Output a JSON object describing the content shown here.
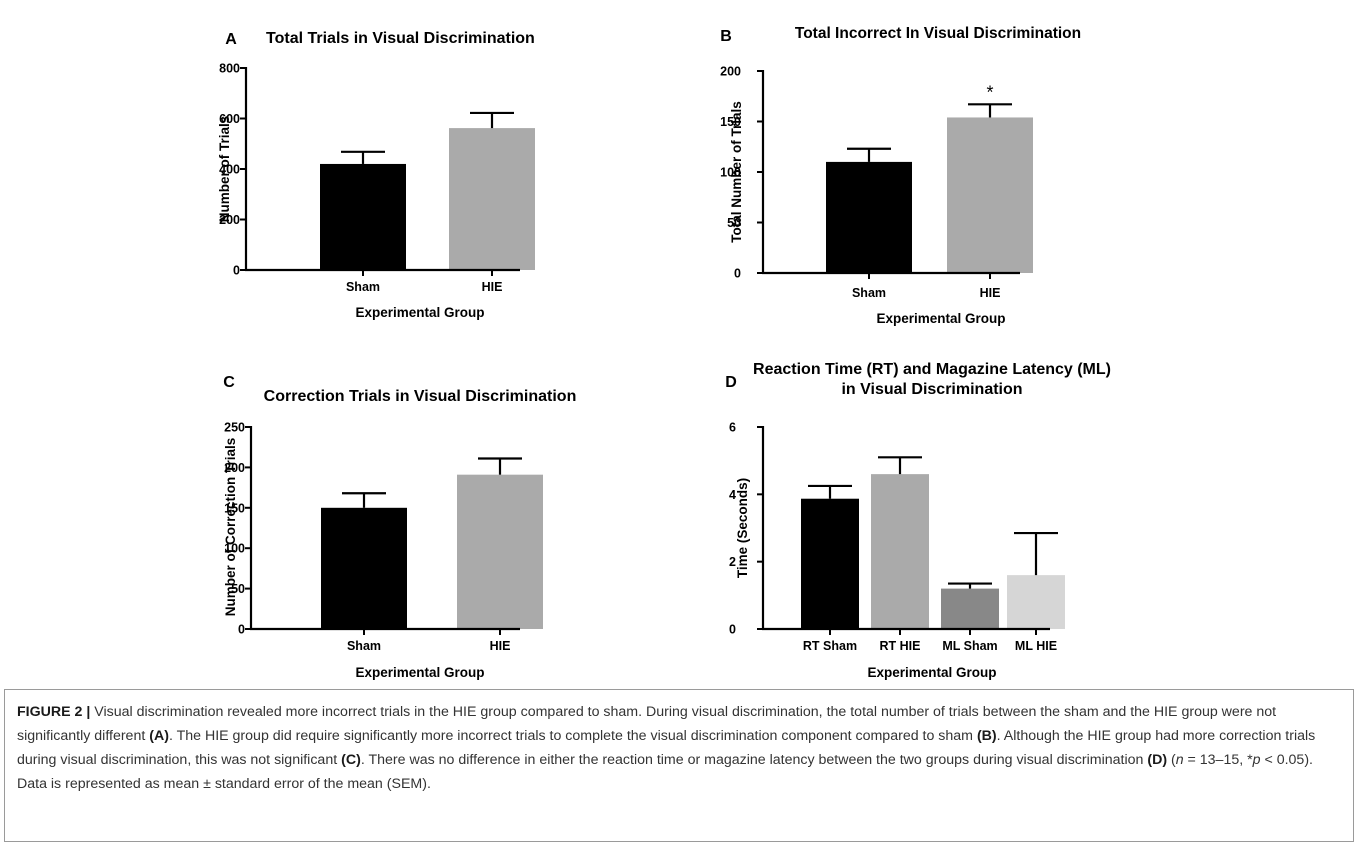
{
  "figure": {
    "caption": {
      "label": "FIGURE 2 |",
      "p1": " Visual discrimination revealed more incorrect trials in the HIE group compared to sham. During visual discrimination, the total number of trials between the sham and the HIE group were not significantly different ",
      "ref_a": "(A)",
      "p2": ". The HIE group did require significantly more incorrect trials to complete the visual discrimination component compared to sham ",
      "ref_b": "(B)",
      "p3": ". Although the HIE group had more correction trials during visual discrimination, this was not significant ",
      "ref_c": "(C)",
      "p4": ". There was no difference in either the reaction time or magazine latency between the two groups during visual discrimination ",
      "ref_d": "(D)",
      "p5": " (",
      "n_italic": "n",
      "p6": " = 13–15, *",
      "p_italic": "p",
      "p7": " < 0.05). Data is represented as mean ± standard error of the mean (SEM)."
    }
  },
  "chart_data": [
    {
      "panel": "A",
      "type": "bar",
      "title": "Total Trials in Visual Discrimination",
      "xlabel": "Experimental Group",
      "ylabel": "Number of Trials",
      "categories": [
        "Sham",
        "HIE"
      ],
      "values": [
        420,
        562
      ],
      "errors": [
        48,
        60
      ],
      "colors": [
        "#000000",
        "#aaaaaa"
      ],
      "ylim": [
        0,
        800
      ],
      "yticks": [
        0,
        200,
        400,
        600,
        800
      ],
      "annotations": []
    },
    {
      "panel": "B",
      "type": "bar",
      "title": "Total Incorrect In Visual Discrimination",
      "xlabel": "Experimental Group",
      "ylabel": "Total Number of Trials",
      "categories": [
        "Sham",
        "HIE"
      ],
      "values": [
        110,
        154
      ],
      "errors": [
        13,
        13
      ],
      "colors": [
        "#000000",
        "#aaaaaa"
      ],
      "ylim": [
        0,
        200
      ],
      "yticks": [
        0,
        50,
        100,
        150,
        200
      ],
      "annotations": [
        {
          "category": "HIE",
          "text": "*"
        }
      ]
    },
    {
      "panel": "C",
      "type": "bar",
      "title": "Correction Trials in Visual Discrimination",
      "xlabel": "Experimental Group",
      "ylabel": "Number of Correction Trials",
      "categories": [
        "Sham",
        "HIE"
      ],
      "values": [
        150,
        191
      ],
      "errors": [
        18,
        20
      ],
      "colors": [
        "#000000",
        "#aaaaaa"
      ],
      "ylim": [
        0,
        250
      ],
      "yticks": [
        0,
        50,
        100,
        150,
        200,
        250
      ],
      "annotations": []
    },
    {
      "panel": "D",
      "type": "bar",
      "title": "Reaction Time (RT) and Magazine Latency (ML)\nin Visual Discrimination",
      "xlabel": "Experimental Group",
      "ylabel": "Time (Seconds)",
      "categories": [
        "RT Sham",
        "RT HIE",
        "ML Sham",
        "ML HIE"
      ],
      "values": [
        3.87,
        4.6,
        1.2,
        1.6
      ],
      "errors": [
        0.38,
        0.5,
        0.15,
        1.25
      ],
      "colors": [
        "#000000",
        "#aaaaaa",
        "#888888",
        "#d6d6d6"
      ],
      "ylim": [
        0,
        6
      ],
      "yticks": [
        0,
        2,
        4,
        6
      ],
      "annotations": []
    }
  ]
}
